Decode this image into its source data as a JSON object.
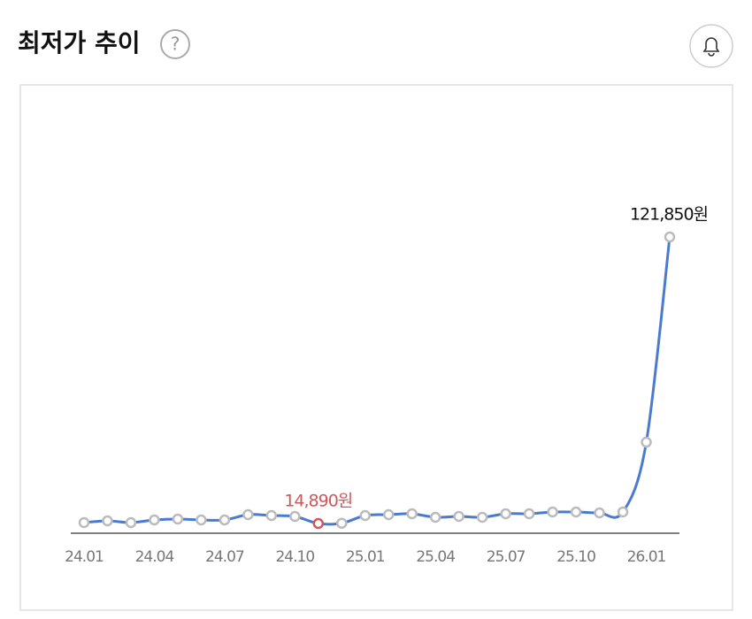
{
  "header": {
    "title": "최저가 추이",
    "help_icon": "?"
  },
  "chart_data": {
    "type": "line",
    "categories": [
      "24.01",
      null,
      null,
      "24.04",
      null,
      null,
      "24.07",
      null,
      null,
      "24.10",
      null,
      null,
      "25.01",
      null,
      null,
      "25.04",
      null,
      null,
      "25.07",
      null,
      null,
      "25.10",
      null,
      null,
      "26.01",
      null
    ],
    "series": [
      {
        "color": "#4a7bd0",
        "values": [
          15220,
          15880,
          15220,
          16210,
          16540,
          16210,
          16210,
          18190,
          17860,
          17530,
          14890,
          14990,
          17860,
          18190,
          18520,
          17200,
          17530,
          17200,
          18520,
          18520,
          19180,
          19180,
          18850,
          19180,
          45250,
          121850
        ],
        "value_labels": [
          null,
          null,
          null,
          null,
          null,
          null,
          null,
          null,
          null,
          null,
          "14,890원",
          null,
          null,
          null,
          null,
          null,
          null,
          null,
          null,
          null,
          null,
          null,
          null,
          null,
          null,
          "121,850원"
        ]
      }
    ],
    "min_color": "#d0575a"
  }
}
